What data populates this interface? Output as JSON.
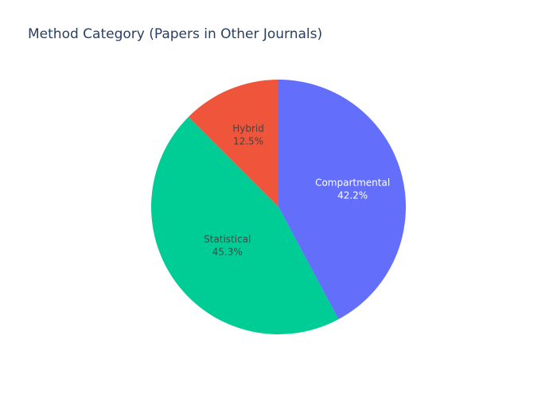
{
  "chart_data": {
    "type": "pie",
    "title": "Method Category (Papers in Other Journals)",
    "labels": [
      "Compartmental",
      "Statistical",
      "Hybrid"
    ],
    "values": [
      42.2,
      45.3,
      12.5
    ],
    "display_percent": [
      "42.2%",
      "45.3%",
      "12.5%"
    ],
    "colors": [
      "#636efa",
      "#00cc96",
      "#ef553b"
    ],
    "label_colors": [
      "#ffffff",
      "#444444",
      "#444444"
    ],
    "start_angle": "12 o'clock",
    "direction": "clockwise",
    "legend": "none"
  }
}
